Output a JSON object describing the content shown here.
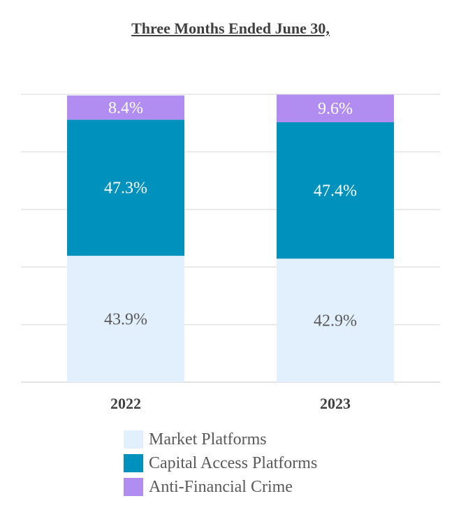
{
  "chart_data": {
    "type": "bar",
    "stacked": true,
    "title": "Three Months Ended June 30,",
    "categories": [
      "2022",
      "2023"
    ],
    "series": [
      {
        "name": "Market Platforms",
        "values": [
          43.9,
          42.9
        ],
        "labels": [
          "43.9%",
          "42.9%"
        ],
        "color": "#e2effc",
        "label_color": "#595959"
      },
      {
        "name": "Capital Access Platforms",
        "values": [
          47.3,
          47.4
        ],
        "labels": [
          "47.3%",
          "47.4%"
        ],
        "color": "#0091bd",
        "label_color": "#ffffff"
      },
      {
        "name": "Anti-Financial Crime",
        "values": [
          8.4,
          9.6
        ],
        "labels": [
          "8.4%",
          "9.6%"
        ],
        "color": "#b18df2",
        "label_color": "#ffffff"
      }
    ],
    "ylim": [
      0,
      100
    ],
    "grid": true,
    "legend_position": "bottom"
  }
}
